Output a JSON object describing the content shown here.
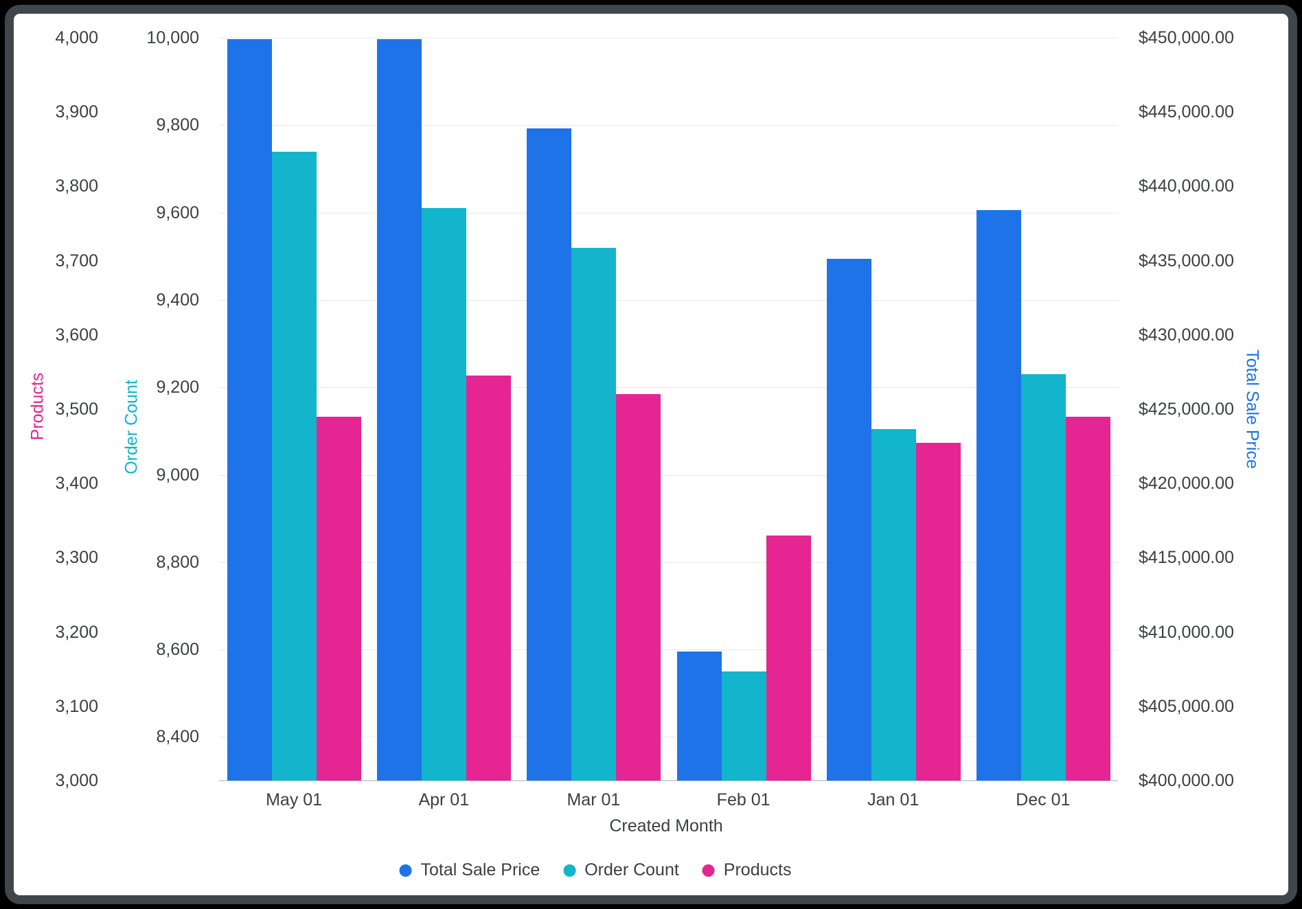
{
  "frame": {
    "background": "#000000",
    "card_background": "#ffffff",
    "card_border": "#3f474c"
  },
  "chart_data": {
    "type": "bar",
    "title": "",
    "xlabel": "Created Month",
    "categories": [
      "May 01",
      "Apr 01",
      "Mar 01",
      "Feb 01",
      "Jan 01",
      "Dec 01"
    ],
    "series": [
      {
        "name": "Total Sale Price",
        "axis": "price",
        "color": "#1E73E8",
        "values": [
          449900,
          449900,
          443900,
          408700,
          435100,
          438400
        ]
      },
      {
        "name": "Order Count",
        "axis": "order",
        "color": "#12B5CB",
        "values": [
          9740,
          9610,
          9520,
          8550,
          9105,
          9230
        ]
      },
      {
        "name": "Products",
        "axis": "products",
        "color": "#E52592",
        "values": [
          3490,
          3545,
          3520,
          3330,
          3455,
          3490
        ]
      }
    ],
    "axes": {
      "products": {
        "title": "Products",
        "color": "#E52592",
        "min": 3000,
        "max": 4000,
        "ticks": [
          {
            "value": 4000,
            "label": "4,000"
          },
          {
            "value": 3900,
            "label": "3,900"
          },
          {
            "value": 3800,
            "label": "3,800"
          },
          {
            "value": 3700,
            "label": "3,700"
          },
          {
            "value": 3600,
            "label": "3,600"
          },
          {
            "value": 3500,
            "label": "3,500"
          },
          {
            "value": 3400,
            "label": "3,400"
          },
          {
            "value": 3300,
            "label": "3,300"
          },
          {
            "value": 3200,
            "label": "3,200"
          },
          {
            "value": 3100,
            "label": "3,100"
          },
          {
            "value": 3000,
            "label": "3,000"
          }
        ]
      },
      "order": {
        "title": "Order Count",
        "color": "#12B5CB",
        "min": 8300,
        "max": 10000,
        "ticks": [
          {
            "value": 10000,
            "label": "10,000"
          },
          {
            "value": 9800,
            "label": "9,800"
          },
          {
            "value": 9600,
            "label": "9,600"
          },
          {
            "value": 9400,
            "label": "9,400"
          },
          {
            "value": 9200,
            "label": "9,200"
          },
          {
            "value": 9000,
            "label": "9,000"
          },
          {
            "value": 8800,
            "label": "8,800"
          },
          {
            "value": 8600,
            "label": "8,600"
          },
          {
            "value": 8400,
            "label": "8,400"
          }
        ]
      },
      "price": {
        "title": "Total Sale Price",
        "color": "#1A73E8",
        "min": 400000,
        "max": 450000,
        "ticks": [
          {
            "value": 450000,
            "label": "$450,000.00"
          },
          {
            "value": 445000,
            "label": "$445,000.00"
          },
          {
            "value": 440000,
            "label": "$440,000.00"
          },
          {
            "value": 435000,
            "label": "$435,000.00"
          },
          {
            "value": 430000,
            "label": "$430,000.00"
          },
          {
            "value": 425000,
            "label": "$425,000.00"
          },
          {
            "value": 420000,
            "label": "$420,000.00"
          },
          {
            "value": 415000,
            "label": "$415,000.00"
          },
          {
            "value": 410000,
            "label": "$410,000.00"
          },
          {
            "value": 405000,
            "label": "$405,000.00"
          },
          {
            "value": 400000,
            "label": "$400,000.00"
          }
        ]
      }
    },
    "grid": {
      "show": true,
      "follows_axis": "order",
      "color": "#e7e9eb"
    },
    "legend": {
      "position": "bottom",
      "entries": [
        "Total Sale Price",
        "Order Count",
        "Products"
      ]
    }
  }
}
